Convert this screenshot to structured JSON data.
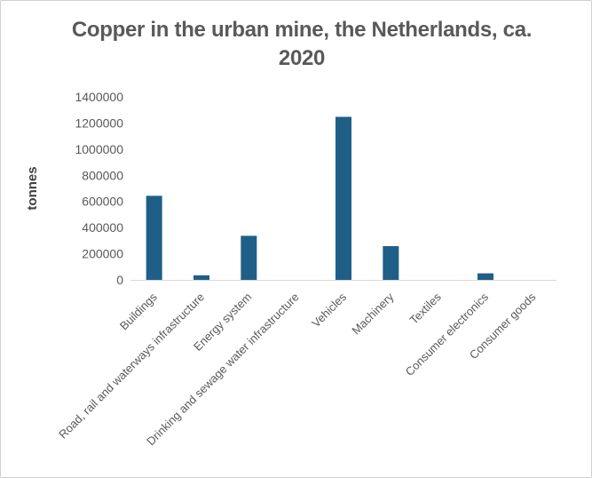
{
  "chart_data": {
    "type": "bar",
    "title": "Copper in the urban mine, the Netherlands, ca. 2020",
    "xlabel": "",
    "ylabel": "tonnes",
    "ylim": [
      0,
      1400000
    ],
    "yticks": [
      0,
      200000,
      400000,
      600000,
      800000,
      1000000,
      1200000,
      1400000
    ],
    "grid": false,
    "legend": "none",
    "bar_color": "#1f5f87",
    "categories": [
      "Buildings",
      "Road, rail and waterways infrastructure",
      "Energy system",
      "Drinking and sewage water infrastructure",
      "Vehicles",
      "Machinery",
      "Textiles",
      "Consumer electronics",
      "Consumer goods"
    ],
    "values": [
      643000,
      35000,
      337000,
      0,
      1247000,
      258000,
      0,
      50000,
      0
    ]
  }
}
